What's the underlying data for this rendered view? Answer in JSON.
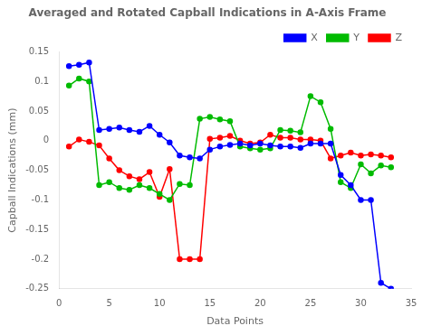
{
  "chart_data": {
    "type": "line",
    "title": "Averaged and Rotated Capball Indications in A-Axis Frame",
    "x_label": "Data Points",
    "y_label": "Capball Indications (mm)",
    "x": [
      1,
      2,
      3,
      4,
      5,
      6,
      7,
      8,
      9,
      10,
      11,
      12,
      13,
      14,
      15,
      16,
      17,
      18,
      19,
      20,
      21,
      22,
      23,
      24,
      25,
      26,
      27,
      28,
      29,
      30,
      31,
      32,
      33
    ],
    "series": [
      {
        "name": "X",
        "color": "#0000FF",
        "marker": "circle",
        "values": [
          0.126,
          0.128,
          0.132,
          0.018,
          0.02,
          0.022,
          0.018,
          0.015,
          0.025,
          0.01,
          -0.003,
          -0.025,
          -0.028,
          -0.03,
          -0.015,
          -0.01,
          -0.007,
          -0.005,
          -0.008,
          -0.005,
          -0.008,
          -0.01,
          -0.01,
          -0.012,
          -0.005,
          -0.005,
          -0.005,
          -0.058,
          -0.075,
          -0.1,
          -0.1,
          -0.24,
          -0.25
        ]
      },
      {
        "name": "Y",
        "color": "#00BB00",
        "marker": "circle",
        "values": [
          0.093,
          0.105,
          0.1,
          -0.075,
          -0.07,
          -0.08,
          -0.083,
          -0.075,
          -0.08,
          -0.09,
          -0.1,
          -0.073,
          -0.075,
          0.037,
          0.04,
          0.036,
          0.033,
          -0.01,
          -0.013,
          -0.015,
          -0.013,
          0.018,
          0.017,
          0.014,
          0.075,
          0.065,
          0.02,
          -0.07,
          -0.08,
          -0.04,
          -0.055,
          -0.042,
          -0.045
        ]
      },
      {
        "name": "Z",
        "color": "#FF0000",
        "marker": "circle",
        "values": [
          -0.01,
          0.002,
          -0.002,
          -0.008,
          -0.03,
          -0.05,
          -0.06,
          -0.065,
          -0.053,
          -0.095,
          -0.048,
          -0.2,
          -0.2,
          -0.2,
          0.003,
          0.005,
          0.008,
          0.0,
          -0.005,
          -0.003,
          0.01,
          0.005,
          0.005,
          0.002,
          0.002,
          0.0,
          -0.03,
          -0.025,
          -0.02,
          -0.025,
          -0.023,
          -0.025,
          -0.028
        ]
      }
    ],
    "xlim": [
      0,
      35
    ],
    "ylim": [
      -0.25,
      0.15
    ],
    "xticks": [
      0,
      5,
      10,
      15,
      20,
      25,
      30,
      35
    ],
    "yticks": [
      -0.25,
      -0.2,
      -0.15,
      -0.1,
      -0.05,
      0,
      0.05,
      0.1,
      0.15
    ],
    "grid": false,
    "legend": "upper right"
  }
}
